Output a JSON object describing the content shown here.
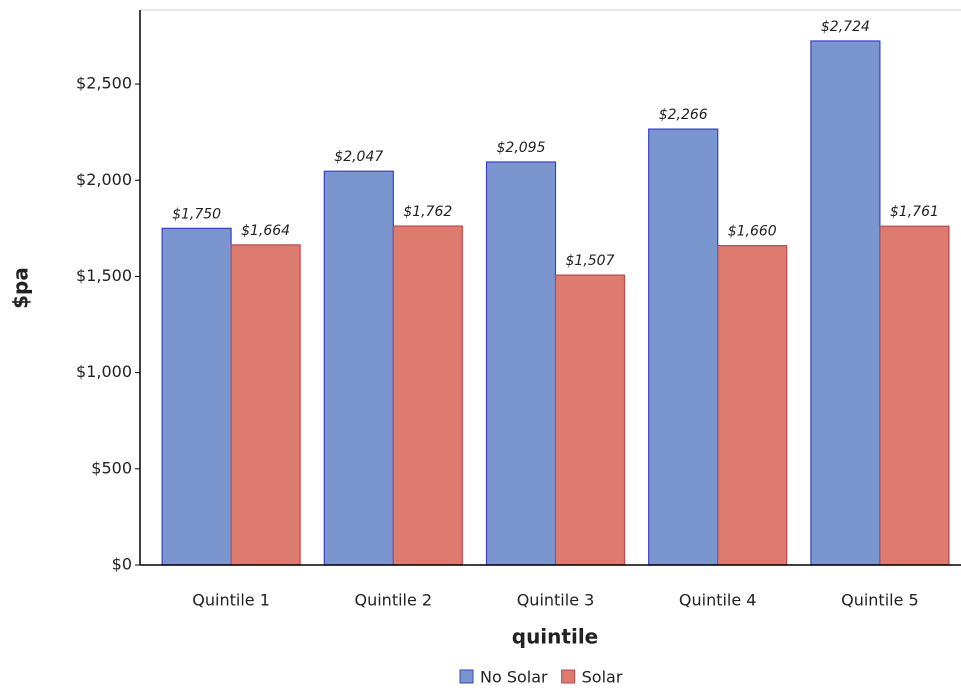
{
  "chart_data": {
    "type": "bar",
    "categories": [
      "Quintile 1",
      "Quintile 2",
      "Quintile 3",
      "Quintile 4",
      "Quintile 5"
    ],
    "series": [
      {
        "name": "No Solar",
        "color": "#7b96cf",
        "values": [
          1750,
          2047,
          2095,
          2266,
          2724
        ],
        "value_labels": [
          "$1,750",
          "$2,047",
          "$2,095",
          "$2,266",
          "$2,724"
        ]
      },
      {
        "name": "Solar",
        "color": "#dd7b6e",
        "values": [
          1664,
          1762,
          1507,
          1660,
          1761
        ],
        "value_labels": [
          "$1,664",
          "$1,762",
          "$1,507",
          "$1,660",
          "$1,761"
        ]
      }
    ],
    "x_label": "quintile",
    "y_label": "$pa",
    "ylim": [
      0,
      2885
    ],
    "yticks": [
      {
        "value": 0,
        "label": "$0"
      },
      {
        "value": 500,
        "label": "$500"
      },
      {
        "value": 1000,
        "label": "$1,000"
      },
      {
        "value": 1500,
        "label": "$1,500"
      },
      {
        "value": 2000,
        "label": "$2,000"
      },
      {
        "value": 2500,
        "label": "$2,500"
      }
    ],
    "legend": "bottom"
  }
}
